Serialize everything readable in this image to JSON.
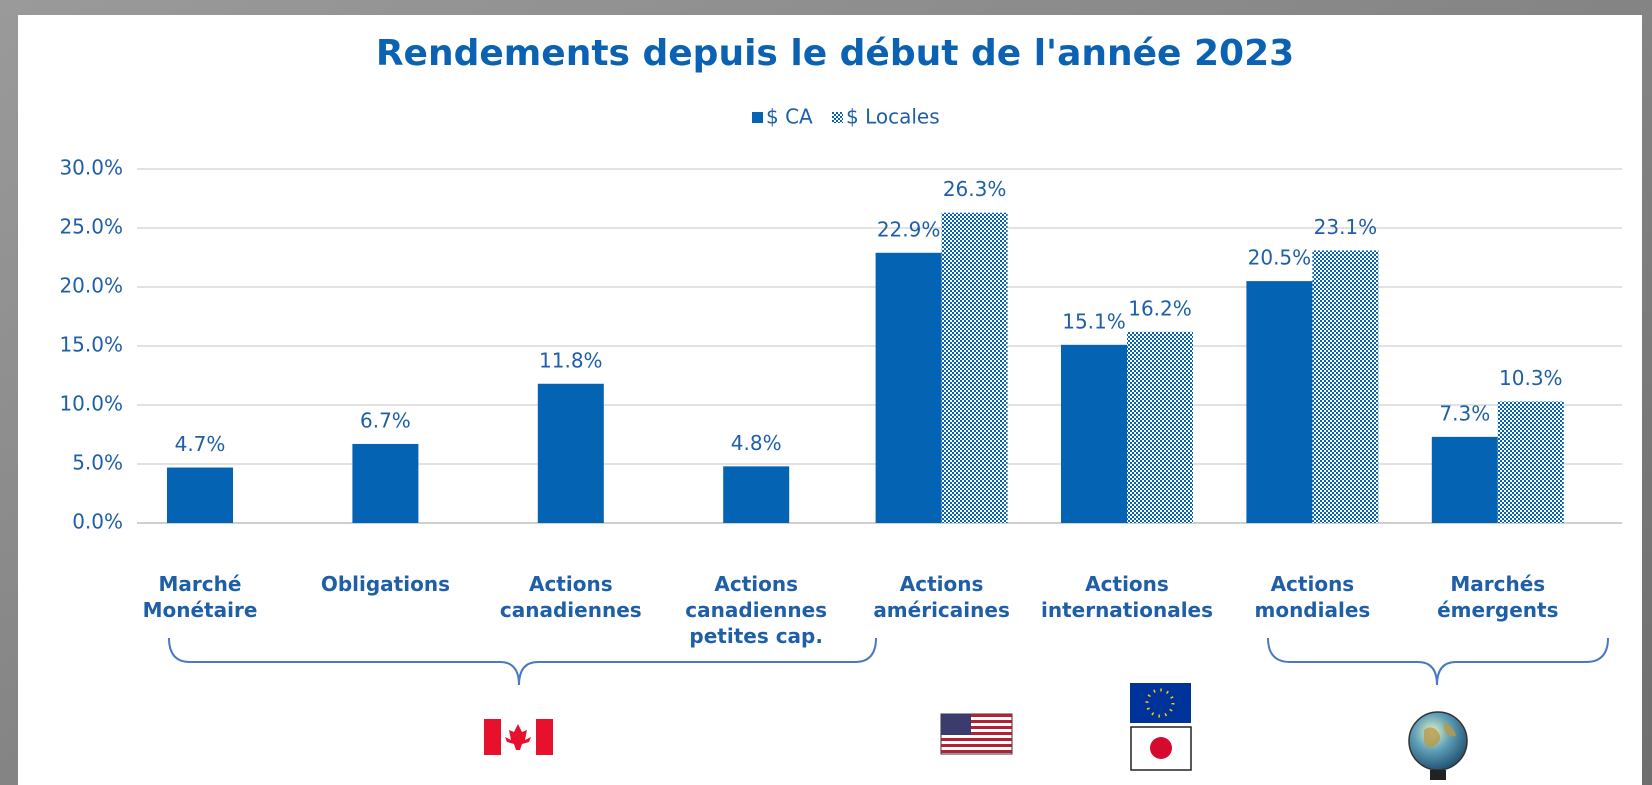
{
  "chart_data": {
    "type": "bar",
    "title": "Rendements depuis le début de l'année 2023",
    "categories": [
      [
        "Marché",
        "Monétaire"
      ],
      [
        "Obligations"
      ],
      [
        "Actions",
        "canadiennes"
      ],
      [
        "Actions",
        "canadiennes",
        "petites cap."
      ],
      [
        "Actions",
        "américaines"
      ],
      [
        "Actions",
        "internationales"
      ],
      [
        "Actions",
        "mondiales"
      ],
      [
        "Marchés",
        "émergents"
      ]
    ],
    "series": [
      {
        "name": "$ CA",
        "color": "#0563b4",
        "pattern": "solid",
        "values": [
          4.7,
          6.7,
          11.8,
          4.8,
          22.9,
          15.1,
          20.5,
          7.3
        ],
        "value_labels": [
          "4.7%",
          "6.7%",
          "11.8%",
          "4.8%",
          "22.9%",
          "15.1%",
          "20.5%",
          "7.3%"
        ]
      },
      {
        "name": "$ Locales",
        "color": "#0563b4",
        "pattern": "checker",
        "values": [
          null,
          null,
          null,
          null,
          26.3,
          16.2,
          23.1,
          10.3
        ],
        "value_labels": [
          null,
          null,
          null,
          null,
          "26.3%",
          "16.2%",
          "23.1%",
          "10.3%"
        ]
      }
    ],
    "ylim": [
      0,
      30
    ],
    "yticks": [
      {
        "value": 0,
        "label": "0.0%"
      },
      {
        "value": 5,
        "label": "5.0%"
      },
      {
        "value": 10,
        "label": "10.0%"
      },
      {
        "value": 15,
        "label": "15.0%"
      },
      {
        "value": 20,
        "label": "20.0%"
      },
      {
        "value": 25,
        "label": "25.0%"
      },
      {
        "value": 30,
        "label": "30.0%"
      }
    ],
    "grid": true,
    "legend": "top"
  }
}
